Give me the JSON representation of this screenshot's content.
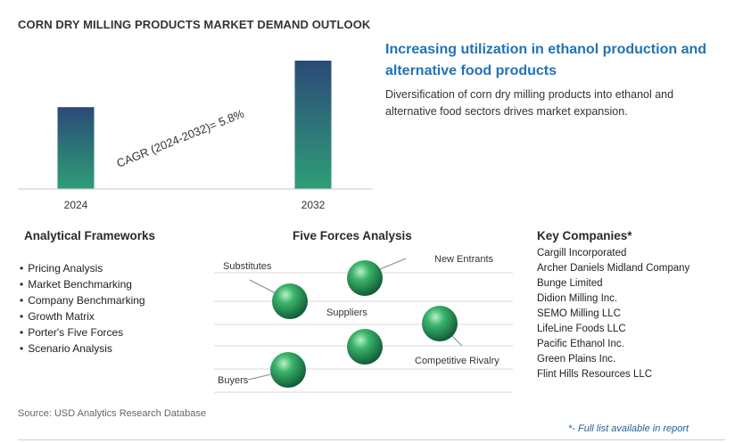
{
  "title": "CORN DRY MILLING PRODUCTS MARKET DEMAND OUTLOOK",
  "chart_data": {
    "type": "bar",
    "categories": [
      "2024",
      "2032"
    ],
    "values": [
      1,
      1.569
    ],
    "annotation": "CAGR (2024-2032)=   5.8%",
    "cagr_percent": 5.8,
    "grid": false
  },
  "headline": "Increasing utilization in ethanol production and alternative food products",
  "description": "Diversification of corn dry milling products into ethanol and alternative food sectors drives market expansion.",
  "frameworks": {
    "title": "Analytical Frameworks",
    "items": [
      "Pricing Analysis",
      "Market Benchmarking",
      "Company Benchmarking",
      "Growth Matrix",
      "Porter's Five Forces",
      "Scenario Analysis"
    ]
  },
  "five_forces": {
    "title": "Five Forces Analysis",
    "labels": {
      "substitutes": "Substitutes",
      "new_entrants": "New Entrants",
      "suppliers": "Suppliers",
      "competitive_rivalry": "Competitive Rivalry",
      "buyers": "Buyers"
    }
  },
  "companies": {
    "title": "Key Companies*",
    "items": [
      "Cargill Incorporated",
      "Archer Daniels Midland Company",
      "Bunge Limited",
      "Didion Milling Inc.",
      "SEMO Milling LLC",
      "LifeLine Foods LLC",
      "Pacific Ethanol Inc.",
      "Green Plains Inc.",
      "Flint Hills Resources LLC"
    ]
  },
  "source": "Source: USD Analytics Research Database",
  "footnote": "*- Full list available in report",
  "colors": {
    "bar_top": "#2b4a78",
    "bar_bottom": "#2f9e77",
    "headline": "#1f73b7",
    "sphere": "#3bb36b"
  }
}
